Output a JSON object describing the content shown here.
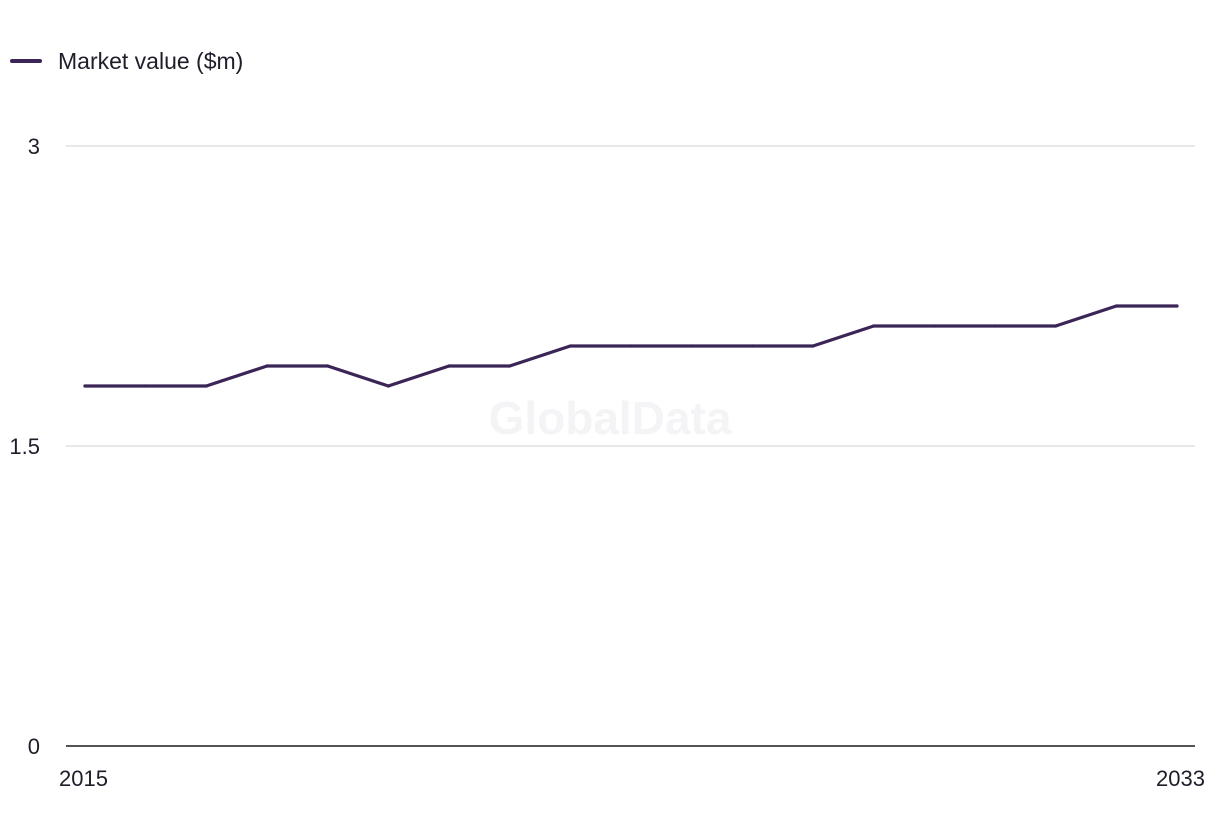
{
  "legend": {
    "label": "Market value ($m)"
  },
  "watermark": "GlobalData",
  "colors": {
    "series": "#3b2556",
    "grid": "#d9d9dc",
    "axis": "#1a1a1a"
  },
  "chart_data": {
    "type": "line",
    "x": [
      2015,
      2016,
      2017,
      2018,
      2019,
      2020,
      2021,
      2022,
      2023,
      2024,
      2025,
      2026,
      2027,
      2028,
      2029,
      2030,
      2031,
      2032,
      2033
    ],
    "series": [
      {
        "name": "Market value ($m)",
        "values": [
          1.8,
          1.8,
          1.8,
          1.9,
          1.9,
          1.8,
          1.9,
          1.9,
          2.0,
          2.0,
          2.0,
          2.0,
          2.0,
          2.1,
          2.1,
          2.1,
          2.1,
          2.2,
          2.2
        ]
      }
    ],
    "ylim": [
      0,
      3
    ],
    "yticks": [
      "0",
      "1.5",
      "3"
    ],
    "xticks": [
      "2015",
      "2033"
    ],
    "grid": true,
    "legend_position": "top-left",
    "xlabel": "",
    "ylabel": ""
  }
}
